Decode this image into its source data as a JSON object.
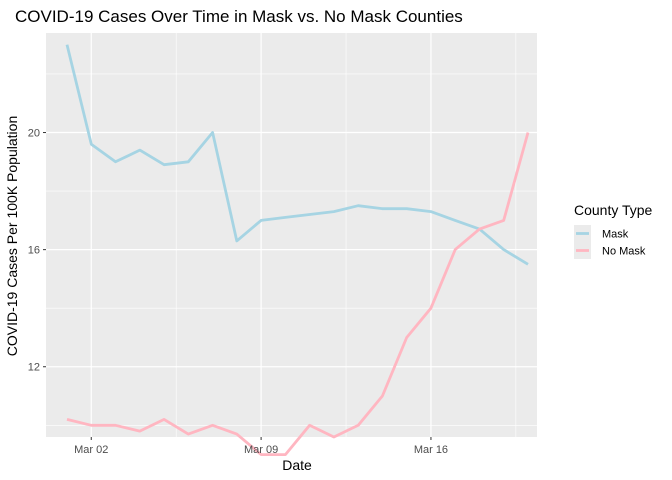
{
  "chart_data": {
    "type": "line",
    "title": "COVID-19 Cases Over Time in Mask vs. No Mask Counties",
    "xlabel": "Date",
    "ylabel": "COVID-19 Cases Per 100K Population",
    "x": [
      "Mar 01",
      "Mar 02",
      "Mar 03",
      "Mar 04",
      "Mar 05",
      "Mar 06",
      "Mar 07",
      "Mar 08",
      "Mar 09",
      "Mar 10",
      "Mar 11",
      "Mar 12",
      "Mar 13",
      "Mar 14",
      "Mar 15",
      "Mar 16",
      "Mar 17",
      "Mar 18",
      "Mar 19",
      "Mar 20"
    ],
    "x_ticks": [
      "Mar 02",
      "Mar 09",
      "Mar 16"
    ],
    "y_ticks": [
      12,
      16,
      20
    ],
    "ylim": [
      9.6,
      23.4
    ],
    "grid": true,
    "legend": {
      "title": "County Type",
      "position": "right"
    },
    "series": [
      {
        "name": "Mask",
        "color": "#a6d4e3",
        "values": [
          23.0,
          19.6,
          19.0,
          19.4,
          18.9,
          19.0,
          20.0,
          16.3,
          17.0,
          17.1,
          17.2,
          17.3,
          17.5,
          17.4,
          17.4,
          17.3,
          17.0,
          16.7,
          16.0,
          15.5
        ]
      },
      {
        "name": "No Mask",
        "color": "#ffb6c1",
        "values": [
          10.2,
          10.0,
          10.0,
          9.8,
          10.2,
          9.7,
          10.0,
          9.7,
          9.0,
          9.0,
          10.0,
          9.6,
          10.0,
          11.0,
          13.0,
          14.0,
          16.0,
          16.7,
          17.0,
          20.0
        ]
      }
    ]
  }
}
